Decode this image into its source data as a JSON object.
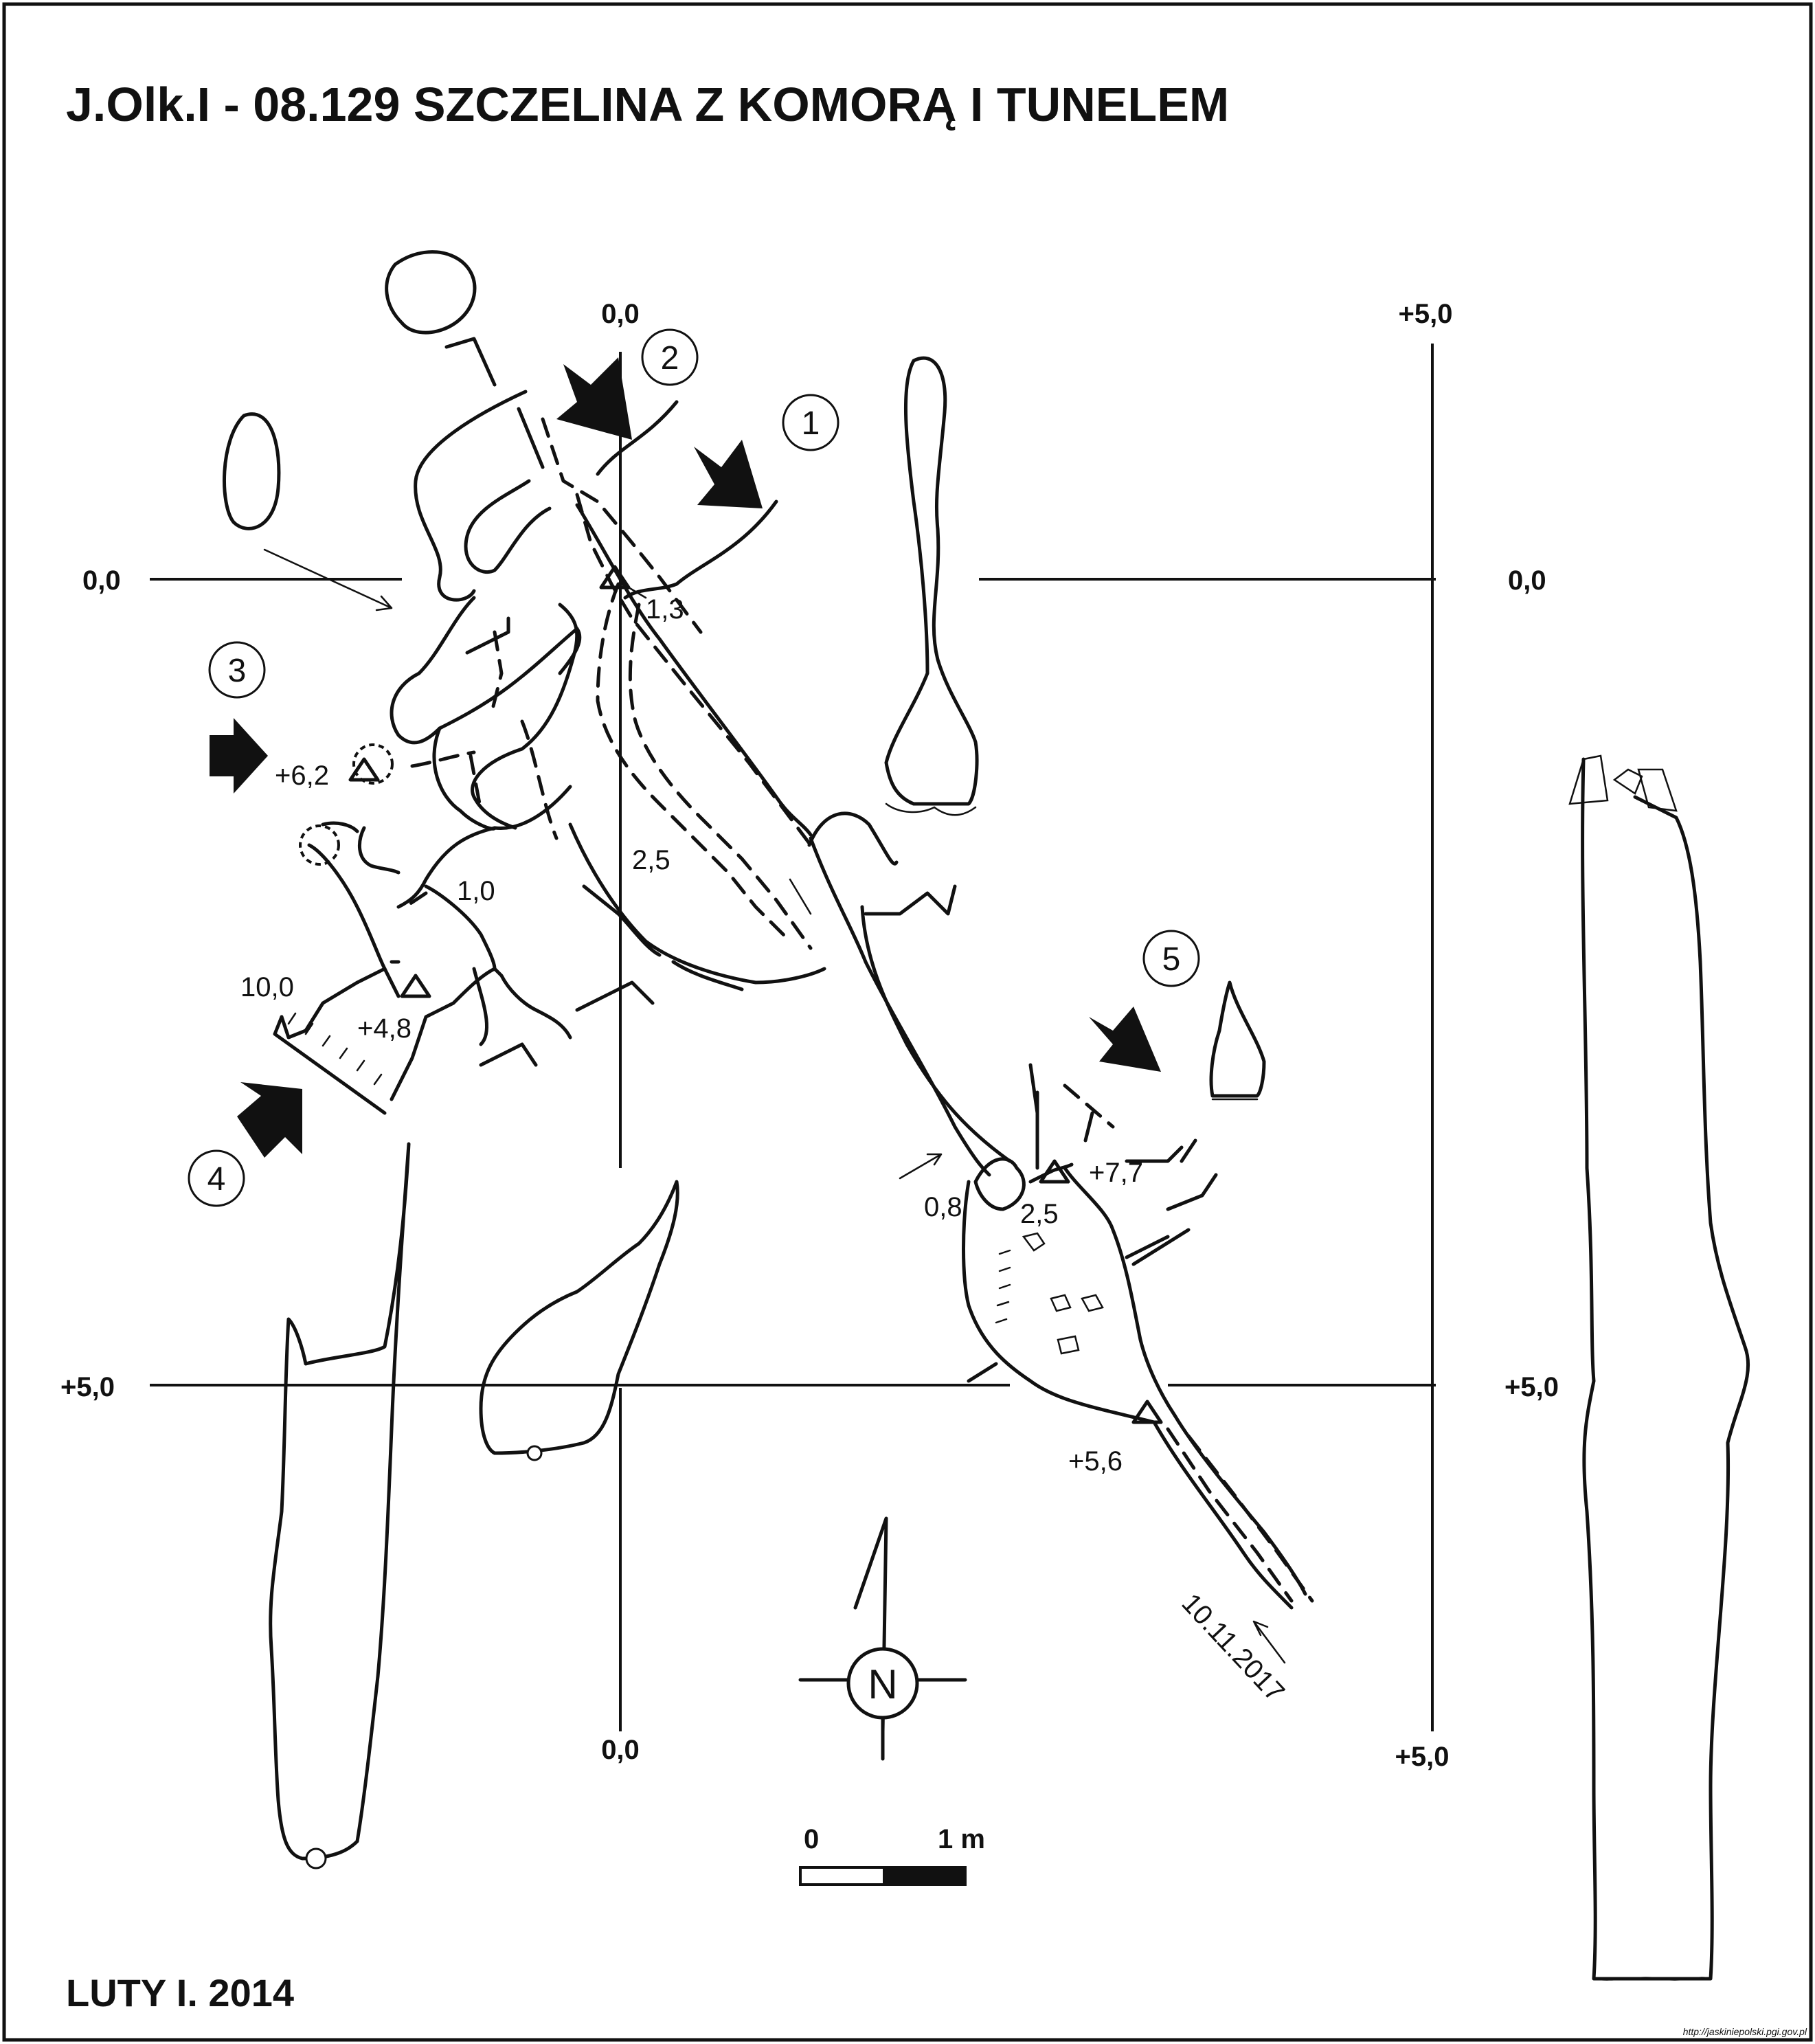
{
  "title": "J.Olk.I - 08.129  SZCZELINA Z KOMORĄ I TUNELEM",
  "author_date": "LUTY I. 2014",
  "survey_date": "10.11.2017",
  "source_url": "http://jaskiniepolski.pgi.gov.pl",
  "grid_labels": {
    "top_left_x": "0,0",
    "top_right_x": "+5,0",
    "left_y0": "0,0",
    "right_y0": "0,0",
    "left_y5": "+5,0",
    "right_y5": "+5,0",
    "bottom_left_x": "0,0",
    "bottom_right_x": "+5,0"
  },
  "depth_labels": [
    "1,3",
    "+6,2",
    "2,5",
    "1,0",
    "10,0",
    "+4,8",
    "0,8",
    "2,5",
    "+7,7",
    "+5,6"
  ],
  "section_numbers": [
    "1",
    "2",
    "3",
    "4",
    "5"
  ],
  "north_label": "N",
  "scale": {
    "start": "0",
    "end": "1 m"
  }
}
